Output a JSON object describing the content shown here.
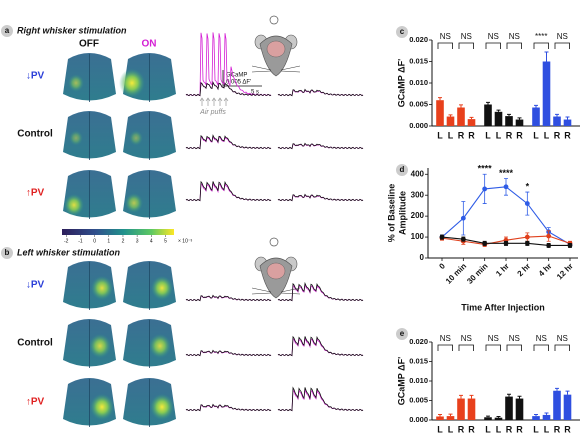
{
  "panel_a": {
    "letter": "a",
    "title": "Right whisker stimulation",
    "off": "OFF",
    "on": "ON",
    "rows": [
      "↓PV",
      "Control",
      "↑PV"
    ],
    "scale_name": "GCaMP",
    "scale_amplitude": "0.005 ΔF'",
    "scale_time": "5 s",
    "stimulus": "Air puffs"
  },
  "colorbar": {
    "lim": [
      -2.3,
      5.6
    ],
    "ticks": [
      -2,
      -1,
      0,
      1,
      2,
      3,
      4,
      5
    ],
    "multiplier": "× 10⁻³"
  },
  "panel_b": {
    "letter": "b",
    "title": "Left whisker stimulation",
    "rows": [
      "↓PV",
      "Control",
      "↑PV"
    ]
  },
  "chart_data": [
    {
      "type": "bar",
      "letter": "c",
      "ylabel": "GCaMP ΔF'",
      "categories": [
        "L",
        "L",
        "R",
        "R",
        "L",
        "L",
        "R",
        "R",
        "L",
        "L",
        "R",
        "R"
      ],
      "category_colors": [
        "#111",
        "#d41fd4",
        "#111",
        "#d41fd4",
        "#111",
        "#d41fd4",
        "#111",
        "#d41fd4",
        "#111",
        "#d41fd4",
        "#111",
        "#d41fd4"
      ],
      "values": [
        0.006,
        0.0022,
        0.0043,
        0.0016,
        0.005,
        0.0033,
        0.0023,
        0.0015,
        0.0043,
        0.015,
        0.0022,
        0.0015
      ],
      "errors": [
        0.0006,
        0.0004,
        0.0006,
        0.0004,
        0.0005,
        0.0004,
        0.0004,
        0.0004,
        0.0005,
        0.0022,
        0.0005,
        0.0006
      ],
      "colors": [
        "#e8401c",
        "#e8401c",
        "#e8401c",
        "#e8401c",
        "#111111",
        "#111111",
        "#111111",
        "#111111",
        "#2f4fe0",
        "#2f4fe0",
        "#2f4fe0",
        "#2f4fe0"
      ],
      "ylim": [
        0,
        0.02
      ],
      "yticks": [
        {
          "value": 0,
          "label": "0.000"
        },
        0.005,
        {
          "value": 0.01,
          "label": "0.010"
        },
        0.015,
        {
          "value": 0.02,
          "label": "0.020"
        }
      ],
      "significance": [
        "NS",
        "NS",
        "NS",
        "NS",
        "****",
        "NS"
      ]
    },
    {
      "type": "line",
      "letter": "d",
      "ylabel": [
        "% of Baseline",
        "Amplitude"
      ],
      "xlabel": "Time After Injection",
      "categories": [
        "0",
        "10 min",
        "30 min",
        "1 hr",
        "2 hr",
        "4 hr",
        "12 hr"
      ],
      "ylim": [
        0,
        430
      ],
      "yticks": [
        0,
        100,
        200,
        300,
        400
      ],
      "series": [
        {
          "color": "#2f5ce6",
          "values": [
            100,
            190,
            330,
            340,
            260,
            125,
            65
          ],
          "errors": [
            10,
            80,
            70,
            40,
            55,
            20,
            10
          ]
        },
        {
          "color": "#e0401c",
          "values": [
            95,
            80,
            65,
            85,
            100,
            105,
            70
          ],
          "errors": [
            10,
            15,
            10,
            15,
            20,
            25,
            10
          ]
        },
        {
          "color": "#111111",
          "values": [
            100,
            90,
            70,
            70,
            70,
            60,
            60
          ],
          "errors": [
            10,
            10,
            10,
            10,
            10,
            10,
            10
          ]
        }
      ],
      "annotations": [
        {
          "x": "30 min",
          "text": "****",
          "color": "#2f5ce6"
        },
        {
          "x": "1 hr",
          "text": "****",
          "color": "#2f5ce6"
        },
        {
          "x": "2 hr",
          "text": "*",
          "color": "#2f5ce6"
        }
      ]
    },
    {
      "type": "bar",
      "letter": "e",
      "ylabel": "GCaMP ΔF'",
      "categories": [
        "L",
        "L",
        "R",
        "R",
        "L",
        "L",
        "R",
        "R",
        "L",
        "L",
        "R",
        "R"
      ],
      "category_colors": [
        "#111",
        "#d41fd4",
        "#111",
        "#d41fd4",
        "#111",
        "#d41fd4",
        "#111",
        "#d41fd4",
        "#111",
        "#d41fd4",
        "#111",
        "#d41fd4"
      ],
      "values": [
        0.0009,
        0.001,
        0.0055,
        0.0055,
        0.0007,
        0.0006,
        0.006,
        0.0055,
        0.001,
        0.0013,
        0.0075,
        0.0065
      ],
      "errors": [
        0.0005,
        0.0005,
        0.0008,
        0.0008,
        0.0003,
        0.0003,
        0.0006,
        0.0006,
        0.0004,
        0.0005,
        0.0006,
        0.0009
      ],
      "colors": [
        "#e8401c",
        "#e8401c",
        "#e8401c",
        "#e8401c",
        "#111111",
        "#111111",
        "#111111",
        "#111111",
        "#2f4fe0",
        "#2f4fe0",
        "#2f4fe0",
        "#2f4fe0"
      ],
      "ylim": [
        0,
        0.02
      ],
      "yticks": [
        {
          "value": 0,
          "label": "0.000"
        },
        0.005,
        {
          "value": 0.01,
          "label": "0.010"
        },
        0.015,
        {
          "value": 0.02,
          "label": "0.020"
        }
      ],
      "significance": [
        "NS",
        "NS",
        "NS",
        "NS",
        "NS",
        "NS"
      ]
    }
  ]
}
